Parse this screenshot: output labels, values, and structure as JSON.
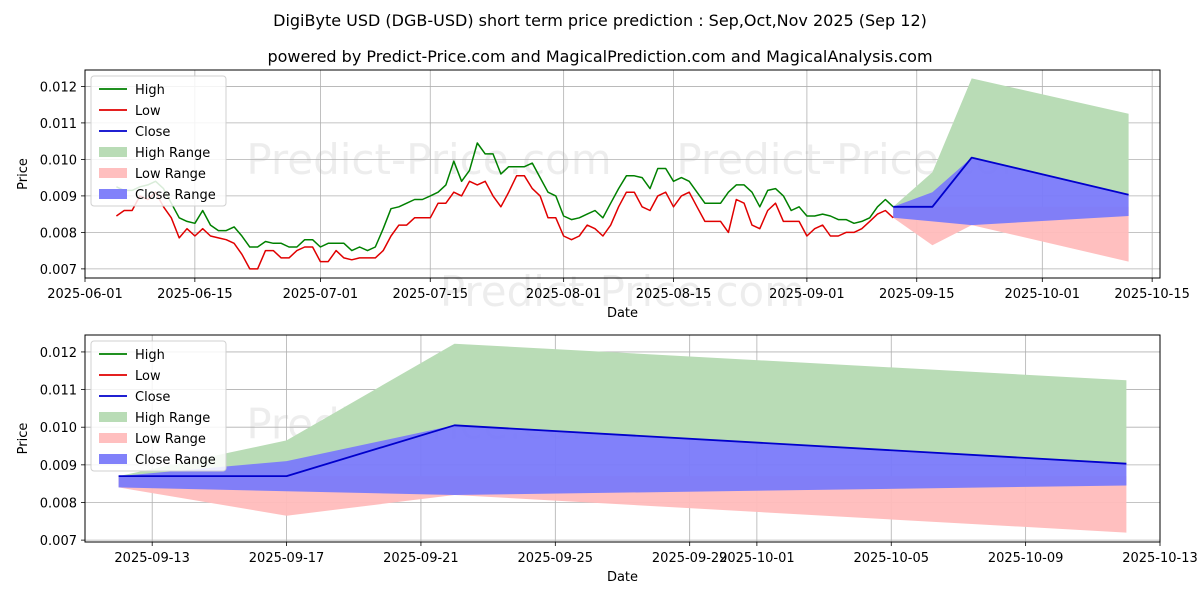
{
  "title": "DigiByte USD (DGB-USD) short term price prediction : Sep,Oct,Nov 2025 (Sep 12)",
  "subtitle": "powered by Predict-Price.com and MagicalPrediction.com and MagicalAnalysis.com",
  "watermark": "Predict-Price.com",
  "colors": {
    "high": "#008000",
    "low": "#e00000",
    "close": "#0000cc",
    "high_range": "#b9dcb6",
    "low_range": "#ffbcbc",
    "close_range": "#7a7afa",
    "grid": "#b0b0b0"
  },
  "chart_data": [
    {
      "type": "line",
      "xlabel": "Date",
      "ylabel": "Price",
      "grid": true,
      "legend_position": "top-left",
      "x_start": "2025-06-05",
      "xlim": [
        "2025-06-01",
        "2025-10-16"
      ],
      "ylim": [
        0.00675,
        0.01245
      ],
      "yticks": [
        "0.007",
        "0.008",
        "0.009",
        "0.010",
        "0.011",
        "0.012"
      ],
      "xticks": [
        "2025-06-01",
        "2025-06-15",
        "2025-07-01",
        "2025-07-15",
        "2025-08-01",
        "2025-08-15",
        "2025-09-01",
        "2025-09-15",
        "2025-10-01",
        "2025-10-15"
      ],
      "legend": [
        "High",
        "Low",
        "Close",
        "High Range",
        "Low Range",
        "Close Range"
      ],
      "series": [
        {
          "name": "High",
          "values": [
            0.00925,
            0.00915,
            0.00915,
            0.00925,
            0.0093,
            0.0094,
            0.0092,
            0.0088,
            0.0084,
            0.0083,
            0.00825,
            0.0086,
            0.0082,
            0.00805,
            0.00805,
            0.00815,
            0.0079,
            0.0076,
            0.0076,
            0.00775,
            0.0077,
            0.0077,
            0.0076,
            0.0076,
            0.0078,
            0.0078,
            0.0076,
            0.0077,
            0.0077,
            0.0077,
            0.0075,
            0.0076,
            0.0075,
            0.0076,
            0.0081,
            0.00865,
            0.0087,
            0.0088,
            0.0089,
            0.0089,
            0.009,
            0.0091,
            0.0093,
            0.00995,
            0.0094,
            0.0097,
            0.01045,
            0.01015,
            0.01015,
            0.0096,
            0.0098,
            0.0098,
            0.0098,
            0.0099,
            0.0095,
            0.0091,
            0.009,
            0.00845,
            0.00835,
            0.0084,
            0.0085,
            0.0086,
            0.0084,
            0.0088,
            0.0092,
            0.00955,
            0.00955,
            0.0095,
            0.0092,
            0.00975,
            0.00975,
            0.0094,
            0.0095,
            0.0094,
            0.0091,
            0.0088,
            0.0088,
            0.0088,
            0.0091,
            0.0093,
            0.0093,
            0.0091,
            0.0087,
            0.00915,
            0.0092,
            0.009,
            0.0086,
            0.0087,
            0.00845,
            0.00845,
            0.0085,
            0.00845,
            0.00835,
            0.00835,
            0.00825,
            0.0083,
            0.0084,
            0.0087,
            0.0089,
            0.0087
          ]
        },
        {
          "name": "Low",
          "values": [
            0.00845,
            0.0086,
            0.0086,
            0.009,
            0.0089,
            0.0091,
            0.0087,
            0.0084,
            0.00785,
            0.0081,
            0.0079,
            0.0081,
            0.0079,
            0.00785,
            0.0078,
            0.0077,
            0.0074,
            0.007,
            0.007,
            0.0075,
            0.0075,
            0.0073,
            0.0073,
            0.0075,
            0.0076,
            0.0076,
            0.0072,
            0.0072,
            0.0075,
            0.0073,
            0.00725,
            0.0073,
            0.0073,
            0.0073,
            0.0075,
            0.0079,
            0.0082,
            0.0082,
            0.0084,
            0.0084,
            0.0084,
            0.0088,
            0.0088,
            0.0091,
            0.009,
            0.0094,
            0.0093,
            0.0094,
            0.009,
            0.0087,
            0.0091,
            0.00955,
            0.00955,
            0.0092,
            0.009,
            0.0084,
            0.0084,
            0.0079,
            0.0078,
            0.0079,
            0.0082,
            0.0081,
            0.0079,
            0.0082,
            0.0087,
            0.0091,
            0.0091,
            0.0087,
            0.0086,
            0.009,
            0.0091,
            0.0087,
            0.009,
            0.0091,
            0.0087,
            0.0083,
            0.0083,
            0.0083,
            0.008,
            0.0089,
            0.0088,
            0.0082,
            0.0081,
            0.0086,
            0.0088,
            0.0083,
            0.0083,
            0.0083,
            0.0079,
            0.0081,
            0.0082,
            0.0079,
            0.0079,
            0.008,
            0.008,
            0.0081,
            0.0083,
            0.0085,
            0.0086,
            0.0084
          ]
        },
        {
          "name": "Close",
          "x": [
            "2025-09-12",
            "2025-09-17",
            "2025-09-22",
            "2025-10-12"
          ],
          "values": [
            0.0087,
            0.0087,
            0.01005,
            0.00903
          ]
        },
        {
          "name": "High Range",
          "x": [
            "2025-09-12",
            "2025-09-17",
            "2025-09-22",
            "2025-10-12"
          ],
          "upper": [
            0.0087,
            0.00965,
            0.01222,
            0.01125
          ],
          "lower": [
            0.0087,
            0.0087,
            0.01005,
            0.00903
          ]
        },
        {
          "name": "Low Range",
          "x": [
            "2025-09-12",
            "2025-09-17",
            "2025-09-22",
            "2025-10-12"
          ],
          "upper": [
            0.0087,
            0.0087,
            0.0087,
            0.0087
          ],
          "lower": [
            0.0084,
            0.00765,
            0.0082,
            0.0072
          ]
        },
        {
          "name": "Close Range",
          "x": [
            "2025-09-12",
            "2025-09-17",
            "2025-09-22",
            "2025-10-12"
          ],
          "upper": [
            0.0087,
            0.0091,
            0.01005,
            0.00903
          ],
          "lower": [
            0.0084,
            0.0083,
            0.0082,
            0.00845
          ]
        }
      ]
    },
    {
      "type": "line",
      "xlabel": "Date",
      "ylabel": "Price",
      "grid": true,
      "legend_position": "top-left",
      "xlim": [
        "2025-09-11",
        "2025-10-13"
      ],
      "ylim": [
        0.00695,
        0.01245
      ],
      "yticks": [
        "0.007",
        "0.008",
        "0.009",
        "0.010",
        "0.011",
        "0.012"
      ],
      "xticks": [
        "2025-09-13",
        "2025-09-17",
        "2025-09-21",
        "2025-09-25",
        "2025-09-29",
        "2025-10-01",
        "2025-10-05",
        "2025-10-09",
        "2025-10-13"
      ],
      "legend": [
        "High",
        "Low",
        "Close",
        "High Range",
        "Low Range",
        "Close Range"
      ],
      "series": [
        {
          "name": "Close",
          "x": [
            "2025-09-12",
            "2025-09-17",
            "2025-09-22",
            "2025-10-12"
          ],
          "values": [
            0.0087,
            0.0087,
            0.01005,
            0.00903
          ]
        },
        {
          "name": "High Range",
          "x": [
            "2025-09-12",
            "2025-09-17",
            "2025-09-22",
            "2025-10-12"
          ],
          "upper": [
            0.0087,
            0.00965,
            0.01222,
            0.01125
          ],
          "lower": [
            0.0087,
            0.0087,
            0.01005,
            0.00903
          ]
        },
        {
          "name": "Low Range",
          "x": [
            "2025-09-12",
            "2025-09-17",
            "2025-09-22",
            "2025-10-12"
          ],
          "upper": [
            0.0087,
            0.0087,
            0.0087,
            0.0087
          ],
          "lower": [
            0.0084,
            0.00765,
            0.0082,
            0.0072
          ]
        },
        {
          "name": "Close Range",
          "x": [
            "2025-09-12",
            "2025-09-17",
            "2025-09-22",
            "2025-10-12"
          ],
          "upper": [
            0.0087,
            0.0091,
            0.01005,
            0.00903
          ],
          "lower": [
            0.0084,
            0.0083,
            0.0082,
            0.00845
          ]
        }
      ]
    }
  ]
}
